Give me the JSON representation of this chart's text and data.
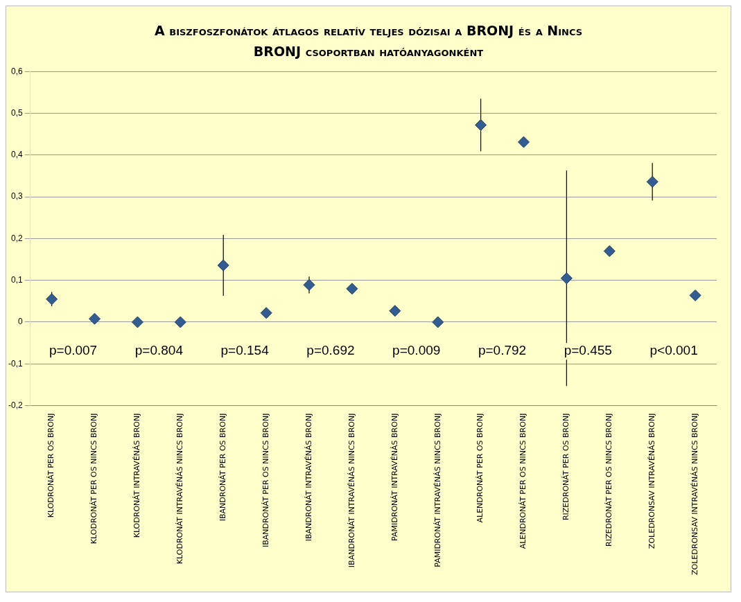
{
  "chart_data": {
    "type": "scatter",
    "title": "A biszfoszfonátok átlagos relatív teljes dózisai a BRONJ és a Nincs BRONJ csoportban hatóanyagonként",
    "categories": [
      "KLODRONÁT PER OS BRONJ",
      "KLODRONÁT PER OS NINCS BRONJ",
      "KLODRONÁT INTRAVÉNÁS BRONJ",
      "KLODRONÁT INTRAVÉNÁS NINCS BRONJ",
      "IBANDRONÁT PER OS BRONJ",
      "IBANDRONÁT PER OS NINCS BRONJ",
      "IBANDRONÁT INTRAVÉNÁS BRONJ",
      "IBANDRONÁT INTRAVÉNÁS NINCS BRONJ",
      "PAMIDRONÁT INTRAVÉNÁS BRONJ",
      "PAMIDRONÁT INTRAVÉNÁS NINCS BRONJ",
      "ALENDRONÁT PER OS BRONJ",
      "ALENDRONÁT PER OS NINCS BRONJ",
      "RIZEDRONÁT PER OS BRONJ",
      "RIZEDRONÁT PER OS NINCS BRONJ",
      "ZOLEDRONSAV INTRAVÉNÁS BRONJ",
      "ZOLEDRONSAV INTRAVÉNÁS NINCS BRONJ"
    ],
    "series": [
      {
        "color": "#335c91",
        "values": [
          0.055,
          0.008,
          0,
          0,
          0.136,
          0.022,
          0.089,
          0.08,
          0.027,
          0,
          0.472,
          0.431,
          0.105,
          0.17,
          0.336,
          0.064
        ],
        "errors": [
          0.017,
          null,
          null,
          null,
          0.073,
          null,
          0.02,
          null,
          null,
          null,
          0.063,
          null,
          0.258,
          null,
          0.045,
          null
        ]
      }
    ],
    "annotations": [
      "p=0.007",
      "p=0.804",
      "p=0.154",
      "p=0.692",
      "p=0.009",
      "p=0.792",
      "p=0.455",
      "p<0.001"
    ],
    "ylim": [
      -0.2,
      0.6
    ],
    "yticks": [
      {
        "value": -0.2,
        "label": "-0,2"
      },
      {
        "value": -0.1,
        "label": "-0,1"
      },
      {
        "value": 0,
        "label": "0"
      },
      {
        "value": 0.1,
        "label": "0,1"
      },
      {
        "value": 0.2,
        "label": "0,2"
      },
      {
        "value": 0.3,
        "label": "0,3"
      },
      {
        "value": 0.4,
        "label": "0,4"
      },
      {
        "value": 0.5,
        "label": "0,5"
      },
      {
        "value": 0.6,
        "label": "0,6"
      }
    ],
    "grid": "y",
    "marker": "diamond",
    "legend": false
  }
}
